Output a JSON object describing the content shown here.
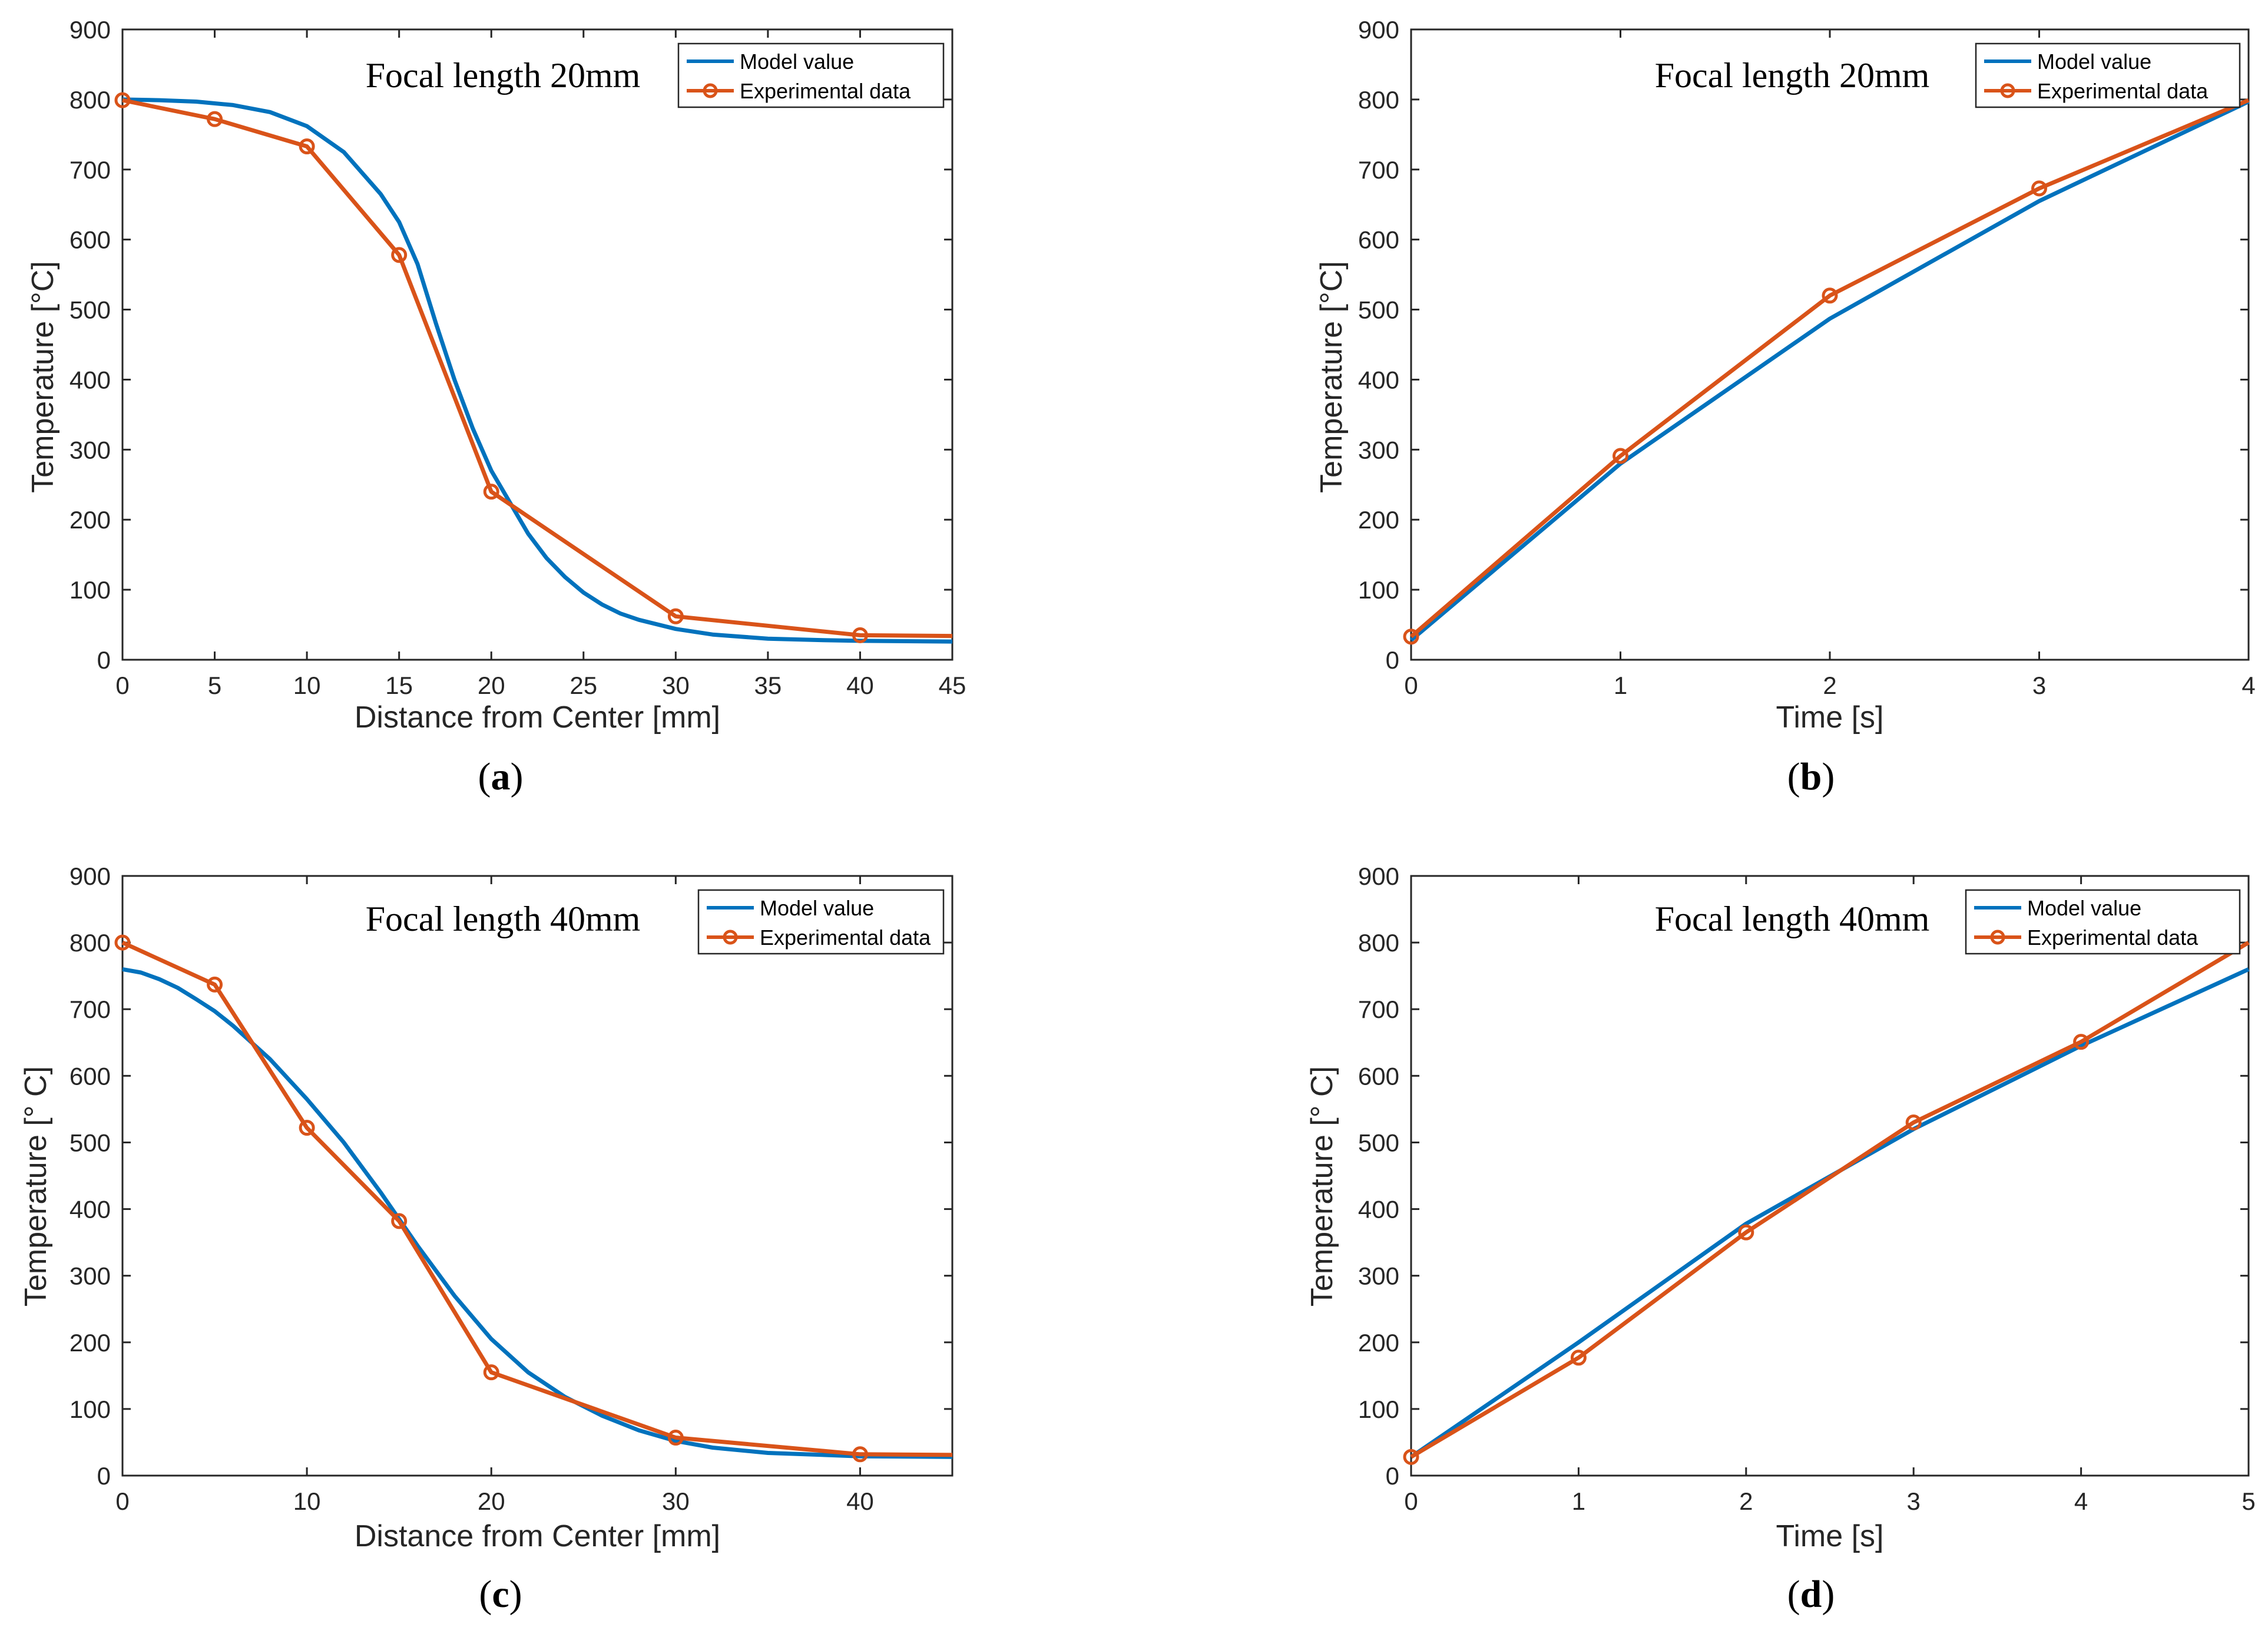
{
  "colors": {
    "model": "#0072BD",
    "experimental": "#D95319",
    "axis": "#262626"
  },
  "chart_data": [
    {
      "id": "a",
      "type": "line",
      "caption_letter": "a",
      "title": "Focal length 20mm",
      "xlabel": "Distance from Center [mm]",
      "ylabel": "Temperature [°C]",
      "xlim": [
        0,
        45
      ],
      "ylim": [
        0,
        900
      ],
      "xticks": [
        0,
        5,
        10,
        15,
        20,
        25,
        30,
        35,
        40,
        45
      ],
      "yticks": [
        0,
        100,
        200,
        300,
        400,
        500,
        600,
        700,
        800,
        900
      ],
      "legend": [
        "Model value",
        "Experimental data"
      ],
      "series": [
        {
          "name": "Model value",
          "x": [
            0,
            2,
            4,
            6,
            8,
            10,
            12,
            14,
            15,
            16,
            17,
            18,
            19,
            20,
            21,
            22,
            23,
            24,
            25,
            26,
            27,
            28,
            30,
            32,
            35,
            38,
            40,
            45
          ],
          "y": [
            800,
            799,
            797,
            792,
            782,
            762,
            725,
            665,
            625,
            565,
            480,
            400,
            330,
            270,
            225,
            180,
            145,
            118,
            96,
            79,
            66,
            57,
            44,
            36,
            30,
            28,
            27,
            26
          ]
        },
        {
          "name": "Experimental data",
          "x": [
            0,
            5,
            10,
            15,
            20,
            30,
            40,
            45
          ],
          "y": [
            799,
            772,
            733,
            578,
            240,
            62,
            35,
            34
          ]
        }
      ]
    },
    {
      "id": "b",
      "type": "line",
      "caption_letter": "b",
      "title": "Focal length 20mm",
      "xlabel": "Time [s]",
      "ylabel": "Temperature [°C]",
      "xlim": [
        0,
        4
      ],
      "ylim": [
        0,
        900
      ],
      "xticks": [
        0,
        1,
        2,
        3,
        4
      ],
      "yticks": [
        0,
        100,
        200,
        300,
        400,
        500,
        600,
        700,
        800,
        900
      ],
      "legend": [
        "Model value",
        "Experimental data"
      ],
      "series": [
        {
          "name": "Model value",
          "x": [
            0,
            1,
            2,
            3,
            4
          ],
          "y": [
            28,
            280,
            487,
            655,
            797
          ]
        },
        {
          "name": "Experimental data",
          "x": [
            0,
            1,
            2,
            3,
            4
          ],
          "y": [
            33,
            291,
            520,
            673,
            799
          ]
        }
      ]
    },
    {
      "id": "c",
      "type": "line",
      "caption_letter": "c",
      "title": "Focal length 40mm",
      "xlabel": "Distance from Center [mm]",
      "ylabel": "Temperature [° C]",
      "xlim": [
        0,
        45
      ],
      "ylim": [
        0,
        900
      ],
      "xticks": [
        0,
        10,
        20,
        30,
        40
      ],
      "yticks": [
        0,
        100,
        200,
        300,
        400,
        500,
        600,
        700,
        800,
        900
      ],
      "legend": [
        "Model value",
        "Experimental data"
      ],
      "series": [
        {
          "name": "Model value",
          "x": [
            0,
            1,
            2,
            3,
            4,
            5,
            6,
            7,
            8,
            10,
            12,
            14,
            16,
            18,
            20,
            22,
            24,
            26,
            28,
            30,
            32,
            35,
            40,
            45
          ],
          "y": [
            760,
            755,
            745,
            732,
            715,
            697,
            675,
            650,
            625,
            565,
            500,
            425,
            345,
            270,
            205,
            155,
            118,
            90,
            68,
            52,
            42,
            34,
            29,
            28
          ]
        },
        {
          "name": "Experimental data",
          "x": [
            0,
            5,
            10,
            15,
            20,
            30,
            40,
            45
          ],
          "y": [
            800,
            737,
            522,
            382,
            155,
            57,
            32,
            31
          ]
        }
      ]
    },
    {
      "id": "d",
      "type": "line",
      "caption_letter": "d",
      "title": "Focal length 40mm",
      "xlabel": "Time [s]",
      "ylabel": "Temperature [° C]",
      "xlim": [
        0,
        5
      ],
      "ylim": [
        0,
        900
      ],
      "xticks": [
        0,
        1,
        2,
        3,
        4,
        5
      ],
      "yticks": [
        0,
        100,
        200,
        300,
        400,
        500,
        600,
        700,
        800,
        900
      ],
      "legend": [
        "Model value",
        "Experimental data"
      ],
      "series": [
        {
          "name": "Model value",
          "x": [
            0,
            1,
            2,
            3,
            4,
            5
          ],
          "y": [
            28,
            200,
            378,
            520,
            645,
            760
          ]
        },
        {
          "name": "Experimental data",
          "x": [
            0,
            1,
            2,
            3,
            4,
            5
          ],
          "y": [
            28,
            177,
            365,
            530,
            651,
            800
          ]
        }
      ]
    }
  ]
}
